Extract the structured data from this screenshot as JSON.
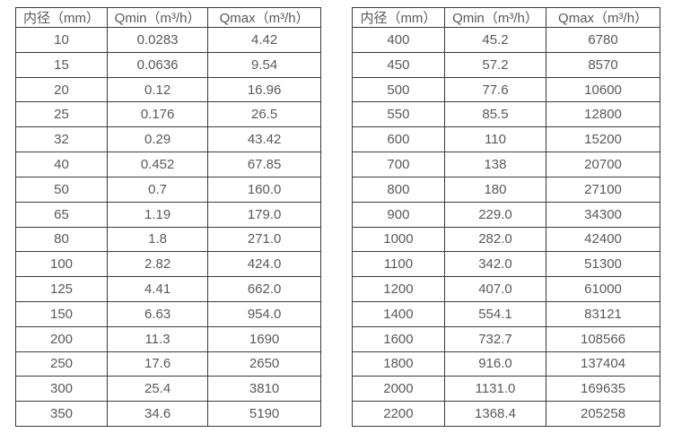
{
  "colors": {
    "background": "#ffffff",
    "border": "#3b3b3b",
    "text": "#595959"
  },
  "chart_data": [
    {
      "type": "table",
      "title": "",
      "columns": [
        "内径（mm）",
        "Qmin（m³/h）",
        "Qmax（m³/h）"
      ],
      "rows": [
        [
          "10",
          "0.0283",
          "4.42"
        ],
        [
          "15",
          "0.0636",
          "9.54"
        ],
        [
          "20",
          "0.12",
          "16.96"
        ],
        [
          "25",
          "0.176",
          "26.5"
        ],
        [
          "32",
          "0.29",
          "43.42"
        ],
        [
          "40",
          "0.452",
          "67.85"
        ],
        [
          "50",
          "0.7",
          "160.0"
        ],
        [
          "65",
          "1.19",
          "179.0"
        ],
        [
          "80",
          "1.8",
          "271.0"
        ],
        [
          "100",
          "2.82",
          "424.0"
        ],
        [
          "125",
          "4.41",
          "662.0"
        ],
        [
          "150",
          "6.63",
          "954.0"
        ],
        [
          "200",
          "11.3",
          "1690"
        ],
        [
          "250",
          "17.6",
          "2650"
        ],
        [
          "300",
          "25.4",
          "3810"
        ],
        [
          "350",
          "34.6",
          "5190"
        ]
      ]
    },
    {
      "type": "table",
      "title": "",
      "columns": [
        "内径（mm）",
        "Qmin（m³/h）",
        "Qmax（m³/h）"
      ],
      "rows": [
        [
          "400",
          "45.2",
          "6780"
        ],
        [
          "450",
          "57.2",
          "8570"
        ],
        [
          "500",
          "77.6",
          "10600"
        ],
        [
          "550",
          "85.5",
          "12800"
        ],
        [
          "600",
          "110",
          "15200"
        ],
        [
          "700",
          "138",
          "20700"
        ],
        [
          "800",
          "180",
          "27100"
        ],
        [
          "900",
          "229.0",
          "34300"
        ],
        [
          "1000",
          "282.0",
          "42400"
        ],
        [
          "1100",
          "342.0",
          "51300"
        ],
        [
          "1200",
          "407.0",
          "61000"
        ],
        [
          "1400",
          "554.1",
          "83121"
        ],
        [
          "1600",
          "732.7",
          "108566"
        ],
        [
          "1800",
          "916.0",
          "137404"
        ],
        [
          "2000",
          "1131.0",
          "169635"
        ],
        [
          "2200",
          "1368.4",
          "205258"
        ]
      ]
    }
  ]
}
